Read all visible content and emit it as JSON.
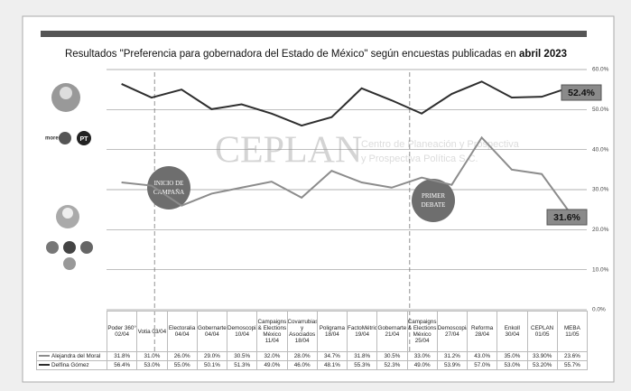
{
  "chart_data": {
    "type": "line",
    "title": "Resultados \"Preferencia para gobernadora del Estado de México\" según encuestas publicadas en",
    "title_emphasis": "abril 2023",
    "categories": [
      "Poder 360° 02/04",
      "Votia 03/04",
      "Electoralia 04/04",
      "Gobernarte 04/04",
      "Demoscopia 10/04",
      "Campaigns & Elections México 11/04",
      "Covarrubias y Asociados 18/04",
      "Poligrama 18/04",
      "FactoMétrica 19/04",
      "Gobernarte 21/04",
      "Campaigns & Elections México 25/04",
      "Demoscopia 27/04",
      "Reforma 28/04",
      "Enkoll 30/04",
      "CEPLAN 01/05",
      "MEBA 11/05"
    ],
    "series": [
      {
        "name": "Alejandra del Moral",
        "color": "#8c8c8c",
        "values": [
          31.8,
          31.0,
          26.0,
          29.0,
          30.5,
          32.0,
          28.0,
          34.7,
          31.8,
          30.5,
          33.0,
          31.2,
          43.0,
          35.0,
          33.9,
          23.6
        ],
        "value_labels": [
          "31.8%",
          "31.0%",
          "26.0%",
          "29.0%",
          "30.5%",
          "32.0%",
          "28.0%",
          "34.7%",
          "31.8%",
          "30.5%",
          "33.0%",
          "31.2%",
          "43.0%",
          "35.0%",
          "33.90%",
          "23.6%"
        ]
      },
      {
        "name": "Delfina Gómez",
        "color": "#2e2e2e",
        "values": [
          56.4,
          53.0,
          55.0,
          50.1,
          51.3,
          49.0,
          46.0,
          48.1,
          55.3,
          52.3,
          49.0,
          53.9,
          57.0,
          53.0,
          53.2,
          55.7
        ],
        "value_labels": [
          "56.4%",
          "53.0%",
          "55.0%",
          "50.1%",
          "51.3%",
          "49.0%",
          "46.0%",
          "48.1%",
          "55.3%",
          "52.3%",
          "49.0%",
          "53.9%",
          "57.0%",
          "53.0%",
          "53.20%",
          "55.7%"
        ]
      }
    ],
    "ylim": [
      0,
      60
    ],
    "yticks": [
      {
        "value": 0,
        "label": "0.0%"
      },
      {
        "value": 10,
        "label": "10.0%"
      },
      {
        "value": 20,
        "label": "20.0%"
      },
      {
        "value": 30,
        "label": "30.0%"
      },
      {
        "value": 40,
        "label": "40.0%"
      },
      {
        "value": 50,
        "label": "50.0%"
      },
      {
        "value": 60,
        "label": "60.0%"
      }
    ],
    "grid": true,
    "annotations": [
      "INICIO DE CAMPAÑA",
      "PRIMER DEBATE"
    ],
    "callouts": [
      "52.4%",
      "31.6%"
    ],
    "watermark": "CEPLAN",
    "watermark_subtitle": [
      "Centro de Planeación y Prospectiva",
      "y Prospectiva Política S.C."
    ],
    "party_logos": [
      "morena",
      "PT"
    ]
  }
}
